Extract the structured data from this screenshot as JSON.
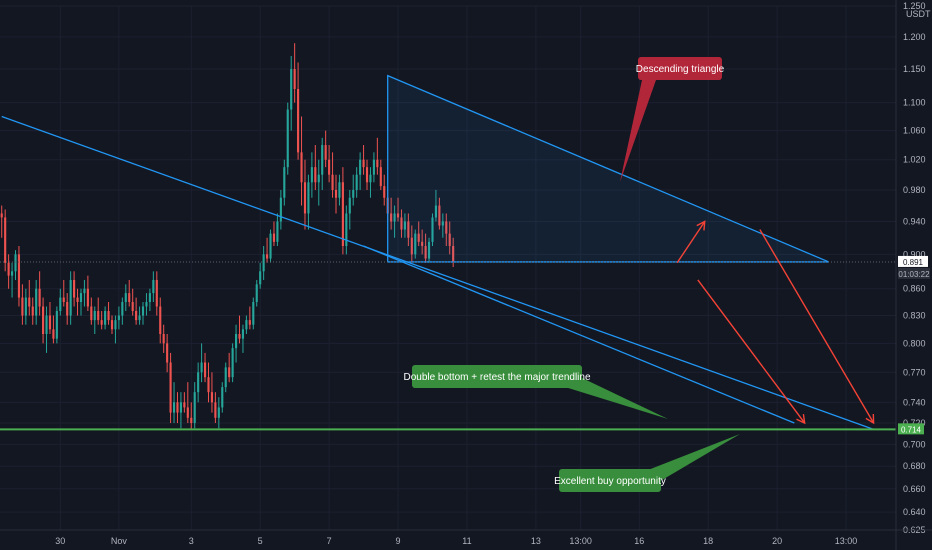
{
  "currency": "USDT",
  "colors": {
    "background": "#131722",
    "up": "#26a69a",
    "down": "#ef5350",
    "trendline": "#2196f3",
    "support": "#4caf50",
    "arrow": "#f44336",
    "callout_red": "#b2263a",
    "callout_green": "#388e3c"
  },
  "price_tags": {
    "current_price": "0.891",
    "countdown": "01:03:22",
    "support_price": "0.714"
  },
  "callouts": {
    "descending_triangle": "Descending triangle",
    "double_bottom": "Double bottom + retest the major trendline",
    "buy_opportunity": "Excellent buy opportunity"
  },
  "chart_data": {
    "type": "candlestick",
    "y_scale": "log",
    "ylim": [
      0.625,
      1.25
    ],
    "y_ticks": [
      "1.250",
      "1.200",
      "1.150",
      "1.100",
      "1.060",
      "1.020",
      "0.980",
      "0.940",
      "0.900",
      "0.860",
      "0.830",
      "0.800",
      "0.770",
      "0.740",
      "0.720",
      "0.700",
      "0.680",
      "0.660",
      "0.640",
      "0.625"
    ],
    "x_tick_labels": [
      "30",
      "Nov",
      "3",
      "5",
      "7",
      "9",
      "11",
      "13",
      "13:00",
      "16",
      "18",
      "20",
      "13:00"
    ],
    "x_tick_bars": [
      17,
      34,
      55,
      75,
      95,
      115,
      135,
      155,
      168,
      185,
      205,
      225,
      245
    ],
    "total_bars": 260,
    "candles": [
      [
        0.95,
        0.96,
        0.92,
        0.945
      ],
      [
        0.945,
        0.955,
        0.88,
        0.89
      ],
      [
        0.89,
        0.9,
        0.86,
        0.875
      ],
      [
        0.875,
        0.89,
        0.85,
        0.88
      ],
      [
        0.88,
        0.905,
        0.87,
        0.9
      ],
      [
        0.9,
        0.91,
        0.84,
        0.85
      ],
      [
        0.85,
        0.865,
        0.82,
        0.83
      ],
      [
        0.83,
        0.86,
        0.82,
        0.85
      ],
      [
        0.85,
        0.87,
        0.83,
        0.84
      ],
      [
        0.84,
        0.85,
        0.82,
        0.83
      ],
      [
        0.83,
        0.87,
        0.82,
        0.86
      ],
      [
        0.86,
        0.88,
        0.83,
        0.84
      ],
      [
        0.84,
        0.85,
        0.8,
        0.81
      ],
      [
        0.81,
        0.84,
        0.79,
        0.83
      ],
      [
        0.83,
        0.845,
        0.81,
        0.815
      ],
      [
        0.815,
        0.83,
        0.8,
        0.805
      ],
      [
        0.805,
        0.84,
        0.8,
        0.835
      ],
      [
        0.835,
        0.86,
        0.83,
        0.85
      ],
      [
        0.85,
        0.87,
        0.84,
        0.845
      ],
      [
        0.845,
        0.855,
        0.82,
        0.83
      ],
      [
        0.83,
        0.88,
        0.82,
        0.87
      ],
      [
        0.87,
        0.88,
        0.84,
        0.85
      ],
      [
        0.85,
        0.86,
        0.83,
        0.845
      ],
      [
        0.845,
        0.86,
        0.83,
        0.855
      ],
      [
        0.855,
        0.87,
        0.84,
        0.86
      ],
      [
        0.86,
        0.875,
        0.835,
        0.84
      ],
      [
        0.84,
        0.85,
        0.82,
        0.825
      ],
      [
        0.825,
        0.84,
        0.81,
        0.835
      ],
      [
        0.835,
        0.85,
        0.82,
        0.825
      ],
      [
        0.825,
        0.835,
        0.815,
        0.82
      ],
      [
        0.82,
        0.84,
        0.815,
        0.835
      ],
      [
        0.835,
        0.845,
        0.82,
        0.825
      ],
      [
        0.825,
        0.83,
        0.81,
        0.815
      ],
      [
        0.815,
        0.83,
        0.8,
        0.825
      ],
      [
        0.825,
        0.84,
        0.815,
        0.83
      ],
      [
        0.83,
        0.85,
        0.82,
        0.845
      ],
      [
        0.845,
        0.865,
        0.835,
        0.855
      ],
      [
        0.855,
        0.87,
        0.84,
        0.845
      ],
      [
        0.845,
        0.86,
        0.83,
        0.835
      ],
      [
        0.835,
        0.85,
        0.82,
        0.825
      ],
      [
        0.825,
        0.84,
        0.82,
        0.83
      ],
      [
        0.83,
        0.845,
        0.82,
        0.84
      ],
      [
        0.84,
        0.855,
        0.83,
        0.845
      ],
      [
        0.845,
        0.86,
        0.835,
        0.855
      ],
      [
        0.855,
        0.88,
        0.845,
        0.87
      ],
      [
        0.87,
        0.88,
        0.83,
        0.84
      ],
      [
        0.84,
        0.85,
        0.8,
        0.81
      ],
      [
        0.81,
        0.82,
        0.79,
        0.8
      ],
      [
        0.8,
        0.81,
        0.77,
        0.78
      ],
      [
        0.78,
        0.79,
        0.72,
        0.73
      ],
      [
        0.73,
        0.76,
        0.72,
        0.74
      ],
      [
        0.74,
        0.75,
        0.72,
        0.73
      ],
      [
        0.73,
        0.75,
        0.715,
        0.74
      ],
      [
        0.74,
        0.75,
        0.73,
        0.735
      ],
      [
        0.735,
        0.76,
        0.72,
        0.725
      ],
      [
        0.725,
        0.74,
        0.714,
        0.72
      ],
      [
        0.72,
        0.76,
        0.715,
        0.75
      ],
      [
        0.75,
        0.78,
        0.74,
        0.77
      ],
      [
        0.77,
        0.8,
        0.76,
        0.78
      ],
      [
        0.78,
        0.79,
        0.76,
        0.765
      ],
      [
        0.765,
        0.78,
        0.74,
        0.75
      ],
      [
        0.75,
        0.77,
        0.73,
        0.74
      ],
      [
        0.74,
        0.75,
        0.72,
        0.725
      ],
      [
        0.725,
        0.745,
        0.715,
        0.735
      ],
      [
        0.735,
        0.76,
        0.73,
        0.755
      ],
      [
        0.755,
        0.78,
        0.75,
        0.775
      ],
      [
        0.775,
        0.79,
        0.76,
        0.765
      ],
      [
        0.765,
        0.8,
        0.76,
        0.795
      ],
      [
        0.795,
        0.82,
        0.78,
        0.81
      ],
      [
        0.81,
        0.83,
        0.8,
        0.805
      ],
      [
        0.805,
        0.82,
        0.79,
        0.815
      ],
      [
        0.815,
        0.83,
        0.81,
        0.825
      ],
      [
        0.825,
        0.84,
        0.815,
        0.82
      ],
      [
        0.82,
        0.85,
        0.815,
        0.845
      ],
      [
        0.845,
        0.87,
        0.84,
        0.865
      ],
      [
        0.865,
        0.89,
        0.86,
        0.88
      ],
      [
        0.88,
        0.91,
        0.87,
        0.9
      ],
      [
        0.9,
        0.92,
        0.89,
        0.895
      ],
      [
        0.895,
        0.93,
        0.89,
        0.925
      ],
      [
        0.925,
        0.94,
        0.91,
        0.915
      ],
      [
        0.915,
        0.95,
        0.91,
        0.94
      ],
      [
        0.94,
        0.98,
        0.93,
        0.97
      ],
      [
        0.97,
        1.02,
        0.96,
        1.01
      ],
      [
        1.01,
        1.1,
        1.0,
        1.09
      ],
      [
        1.09,
        1.17,
        1.06,
        1.15
      ],
      [
        1.15,
        1.19,
        1.1,
        1.12
      ],
      [
        1.12,
        1.16,
        1.02,
        1.03
      ],
      [
        1.03,
        1.08,
        0.96,
        0.99
      ],
      [
        0.99,
        1.02,
        0.93,
        0.95
      ],
      [
        0.95,
        1.0,
        0.93,
        0.99
      ],
      [
        0.99,
        1.03,
        0.97,
        1.01
      ],
      [
        1.01,
        1.04,
        0.98,
        0.99
      ],
      [
        0.99,
        1.02,
        0.96,
        1.0
      ],
      [
        1.0,
        1.05,
        0.98,
        1.04
      ],
      [
        1.04,
        1.06,
        1.01,
        1.02
      ],
      [
        1.02,
        1.04,
        0.99,
        1.0
      ],
      [
        1.0,
        1.03,
        0.97,
        0.98
      ],
      [
        0.98,
        1.0,
        0.95,
        0.97
      ],
      [
        0.97,
        1.0,
        0.96,
        0.99
      ],
      [
        0.99,
        1.01,
        0.9,
        0.91
      ],
      [
        0.91,
        0.96,
        0.9,
        0.95
      ],
      [
        0.95,
        0.98,
        0.93,
        0.97
      ],
      [
        0.97,
        1.0,
        0.96,
        0.98
      ],
      [
        0.98,
        1.01,
        0.97,
        1.0
      ],
      [
        1.0,
        1.03,
        0.98,
        1.02
      ],
      [
        1.02,
        1.04,
        1.0,
        1.01
      ],
      [
        1.01,
        1.02,
        0.98,
        0.99
      ],
      [
        0.99,
        1.01,
        0.97,
        1.0
      ],
      [
        1.0,
        1.03,
        0.99,
        1.02
      ],
      [
        1.02,
        1.05,
        1.0,
        1.01
      ],
      [
        1.01,
        1.02,
        0.98,
        0.985
      ],
      [
        0.985,
        1.0,
        0.96,
        0.97
      ],
      [
        0.97,
        0.98,
        0.94,
        0.95
      ],
      [
        0.95,
        0.97,
        0.93,
        0.94
      ],
      [
        0.94,
        0.96,
        0.92,
        0.95
      ],
      [
        0.95,
        0.97,
        0.94,
        0.945
      ],
      [
        0.945,
        0.955,
        0.92,
        0.93
      ],
      [
        0.93,
        0.95,
        0.92,
        0.94
      ],
      [
        0.94,
        0.95,
        0.91,
        0.92
      ],
      [
        0.92,
        0.935,
        0.89,
        0.9
      ],
      [
        0.9,
        0.93,
        0.895,
        0.925
      ],
      [
        0.925,
        0.94,
        0.91,
        0.915
      ],
      [
        0.915,
        0.93,
        0.9,
        0.91
      ],
      [
        0.91,
        0.925,
        0.89,
        0.895
      ],
      [
        0.895,
        0.92,
        0.89,
        0.915
      ],
      [
        0.915,
        0.95,
        0.91,
        0.945
      ],
      [
        0.945,
        0.98,
        0.94,
        0.96
      ],
      [
        0.96,
        0.97,
        0.93,
        0.935
      ],
      [
        0.935,
        0.95,
        0.92,
        0.94
      ],
      [
        0.94,
        0.95,
        0.91,
        0.925
      ],
      [
        0.925,
        0.94,
        0.9,
        0.91
      ],
      [
        0.91,
        0.92,
        0.885,
        0.891
      ]
    ],
    "annotations": {
      "triangle": {
        "top_left": [
          112,
          1.14
        ],
        "bottom_left": [
          112,
          0.891
        ],
        "bottom_right": [
          240,
          0.891
        ]
      },
      "channel_upper": {
        "from": [
          0,
          1.08
        ],
        "to": [
          253,
          0.714
        ]
      },
      "channel_lower": {
        "from": [
          105,
          0.91
        ],
        "to": [
          230,
          0.72
        ]
      },
      "support_level": 0.714,
      "arrow_up": {
        "from": [
          196,
          0.89
        ],
        "to": [
          204,
          0.94
        ]
      },
      "arrow_down_1": {
        "from": [
          202,
          0.87
        ],
        "to": [
          233,
          0.72
        ]
      },
      "arrow_down_2": {
        "from": [
          220,
          0.93
        ],
        "to": [
          253,
          0.72
        ]
      }
    }
  }
}
